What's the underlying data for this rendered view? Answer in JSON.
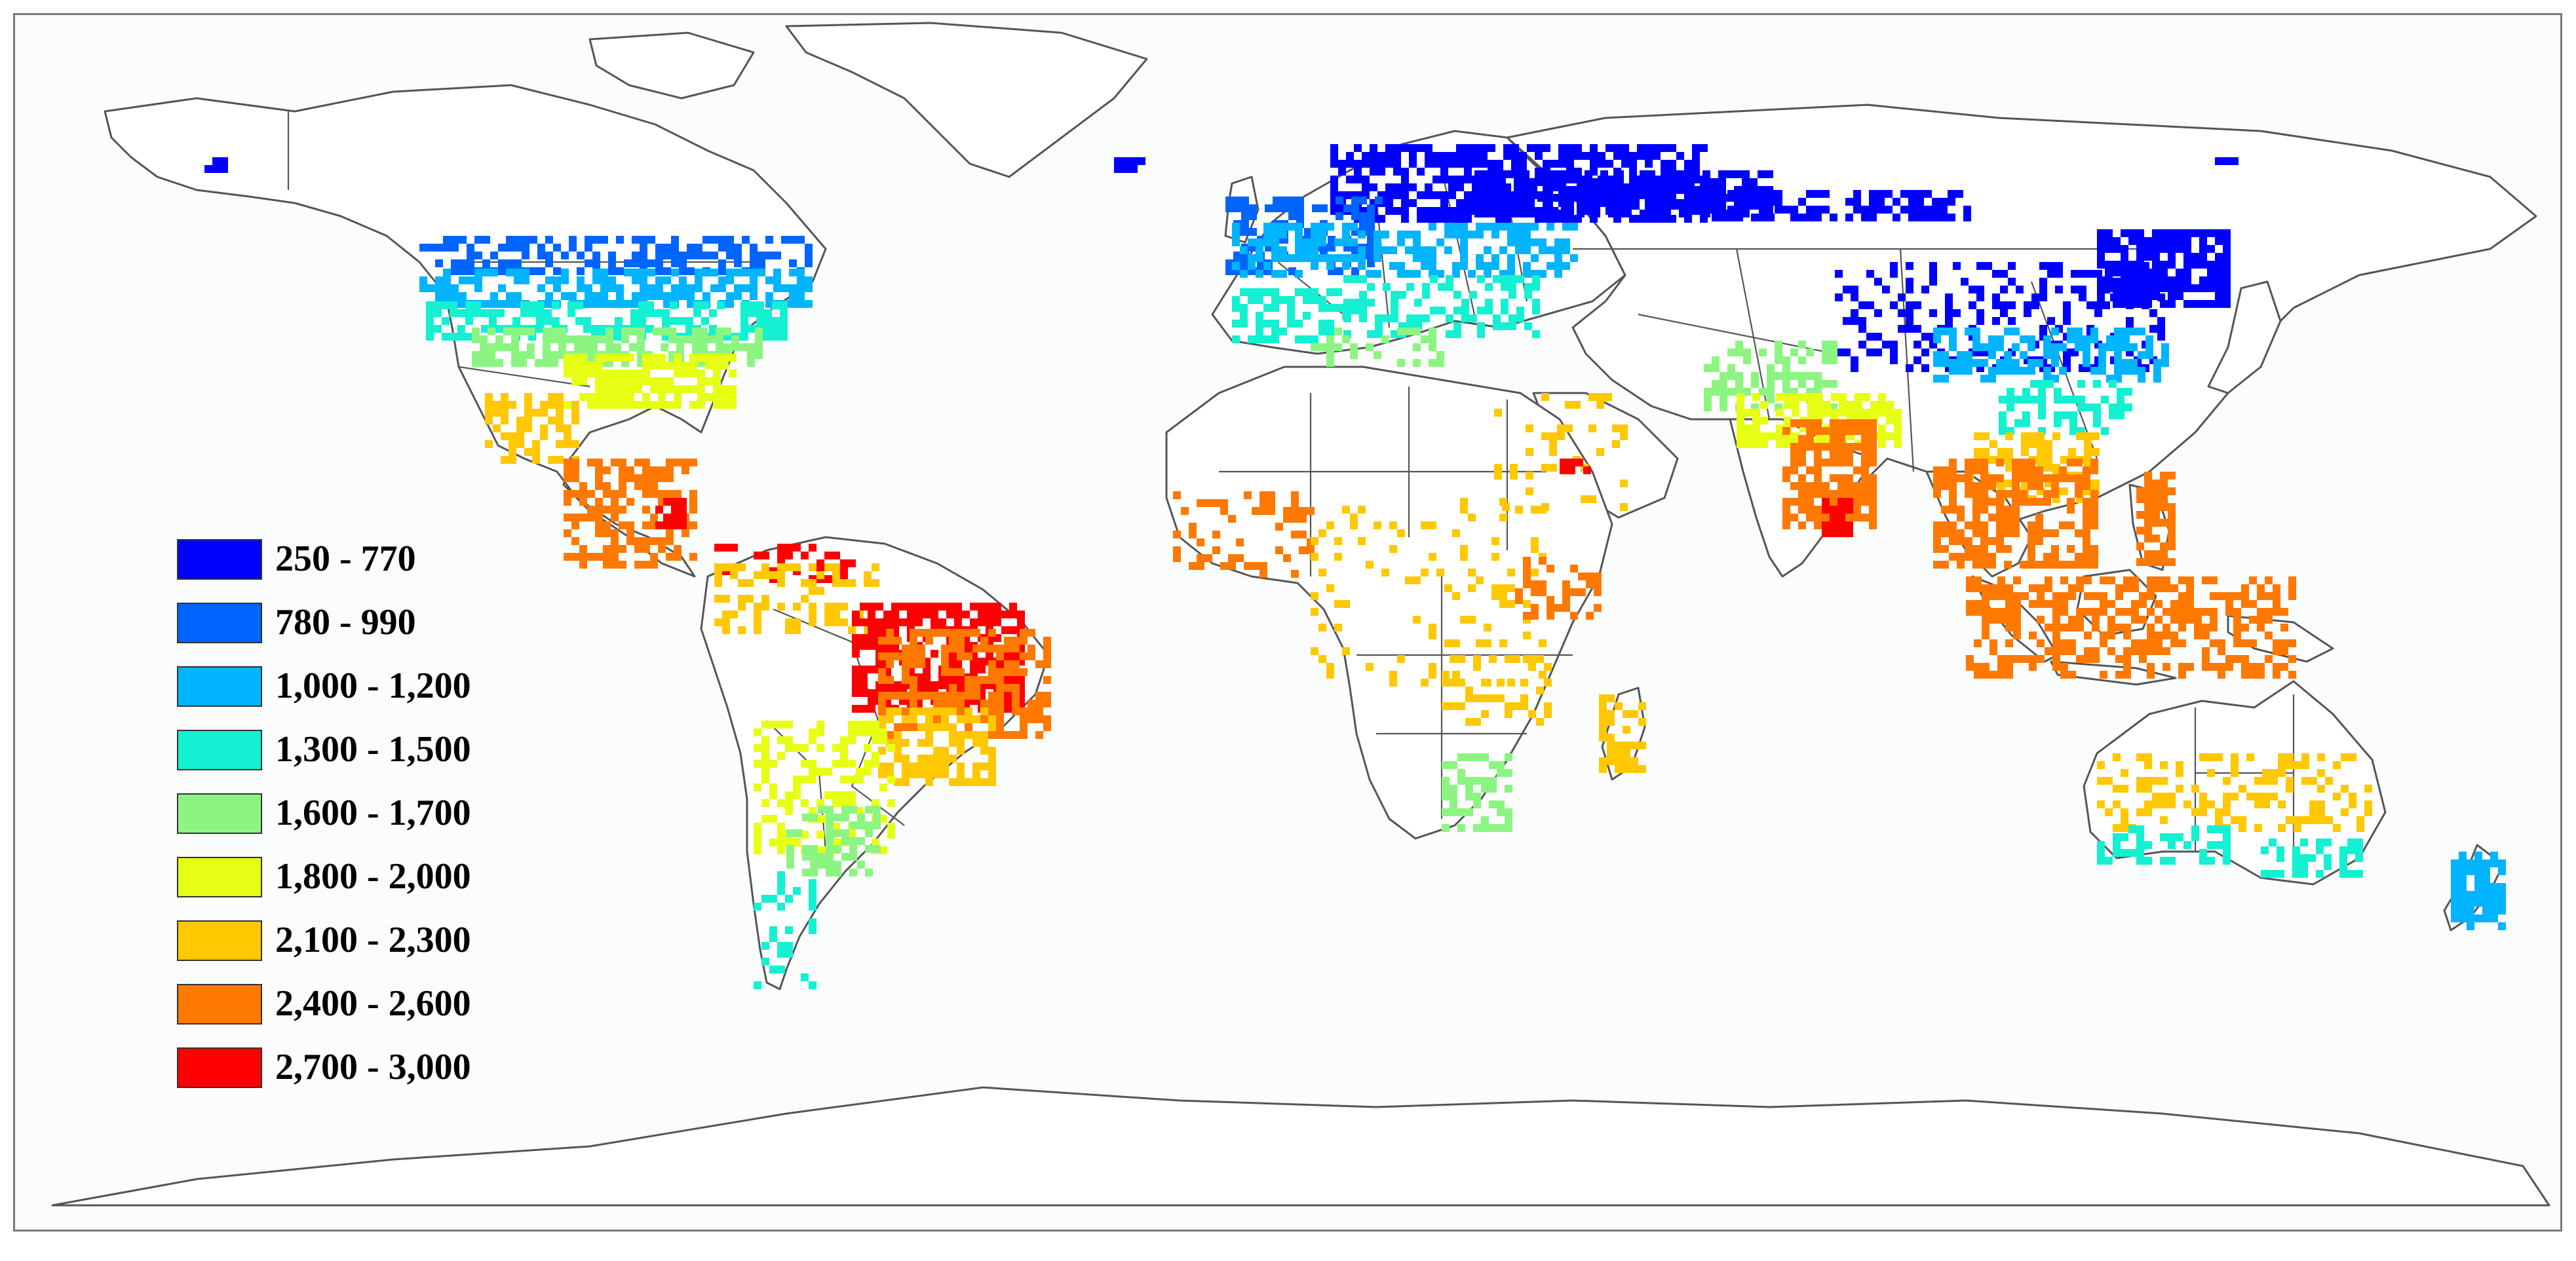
{
  "map": {
    "type": "choropleth-world",
    "projection": "equirectangular",
    "colors": {
      "ocean": "#fbfdfd",
      "land": "#ffffff",
      "outline": "#555555"
    }
  },
  "legend": {
    "items": [
      {
        "label": "250 - 770",
        "color": "#0000ff"
      },
      {
        "label": "780 - 990",
        "color": "#0064ff"
      },
      {
        "label": "1,000 - 1,200",
        "color": "#00b4ff"
      },
      {
        "label": "1,300 - 1,500",
        "color": "#14f0d2"
      },
      {
        "label": "1,600 - 1,700",
        "color": "#8cf582"
      },
      {
        "label": "1,800 - 2,000",
        "color": "#e6ff14"
      },
      {
        "label": "2,100 - 2,300",
        "color": "#ffc800"
      },
      {
        "label": "2,400 - 2,600",
        "color": "#ff7800"
      },
      {
        "label": "2,700 - 3,000",
        "color": "#ff0000"
      }
    ]
  }
}
